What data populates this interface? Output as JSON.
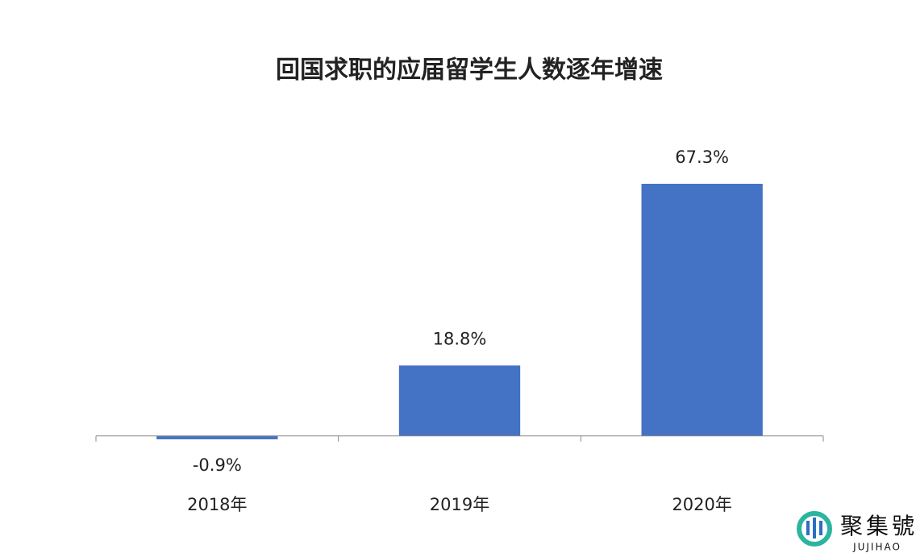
{
  "chart_data": {
    "type": "bar",
    "title": "回国求职的应届留学生人数逐年增速",
    "categories": [
      "2018年",
      "2019年",
      "2020年"
    ],
    "values": [
      -0.9,
      18.8,
      67.3
    ],
    "value_labels": [
      "-0.9%",
      "18.8%",
      "67.3%"
    ],
    "color": "#4472c4",
    "ylim": [
      -5,
      80
    ]
  },
  "watermark": {
    "name": "聚集號",
    "latin": "JUJIHAO"
  }
}
